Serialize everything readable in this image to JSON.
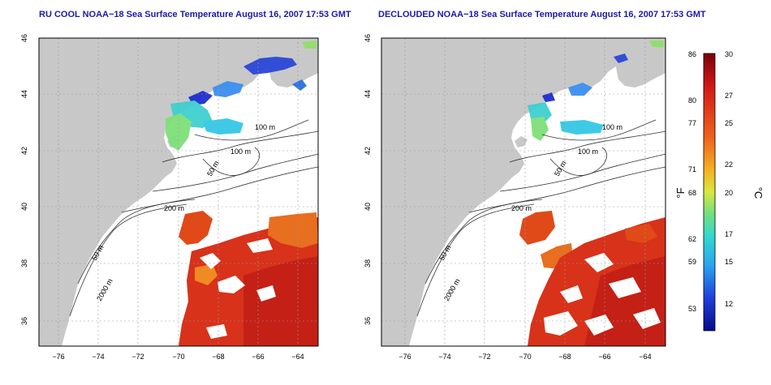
{
  "panels": [
    {
      "title": "RU COOL NOAA−18 Sea Surface Temperature August 16, 2007 17:53 GMT",
      "variant": "raw",
      "x_ticks": [
        "−76",
        "−74",
        "−72",
        "−70",
        "−68",
        "−66",
        "−64"
      ],
      "y_ticks": [
        "36",
        "38",
        "40",
        "42",
        "44",
        "46"
      ],
      "contour_labels": [
        "100 m",
        "100 m",
        "50 m",
        "200 m",
        "50 m",
        "2000 m"
      ]
    },
    {
      "title": "DECLOUDED NOAA−18 Sea Surface Temperature August 16, 2007 17:53 GMT",
      "variant": "declouded",
      "x_ticks": [
        "−76",
        "−74",
        "−72",
        "−70",
        "−68",
        "−66",
        "−64"
      ],
      "y_ticks": [
        "36",
        "38",
        "40",
        "42",
        "44",
        "46"
      ],
      "contour_labels": [
        "100 m",
        "100 m",
        "50 m",
        "200 m",
        "50 m",
        "2000 m"
      ]
    }
  ],
  "colorbar": {
    "fahrenheit_unit": "°F",
    "celsius_unit": "°C",
    "fahrenheit_ticks": [
      "86",
      "80",
      "77",
      "71",
      "68",
      "62",
      "59",
      "53"
    ],
    "celsius_ticks": [
      "30",
      "27",
      "25",
      "22",
      "20",
      "17",
      "15",
      "12"
    ]
  },
  "colors": {
    "land": "#c8c8c8",
    "ocean": "#ffffff",
    "warm": "#d82a10",
    "cool": "#2233cc",
    "title": "#1a1aa8"
  }
}
